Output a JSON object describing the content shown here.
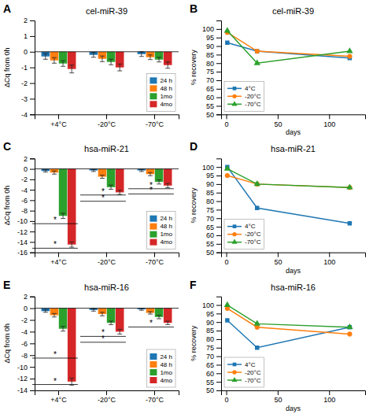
{
  "chart_data": [
    {
      "type": "bar",
      "panel_label": "A",
      "title": "cel-miR-39",
      "y_label": "ΔCq from 0h",
      "categories": [
        "+4°C",
        "-20°C",
        "-70°C"
      ],
      "series": [
        {
          "name": "24 h",
          "values": [
            -0.3,
            -0.2,
            -0.15
          ],
          "errors": [
            0.18,
            0.15,
            0.15
          ]
        },
        {
          "name": "48 h",
          "values": [
            -0.55,
            -0.45,
            -0.35
          ],
          "errors": [
            0.18,
            0.18,
            0.15
          ]
        },
        {
          "name": "1mo",
          "values": [
            -0.75,
            -0.65,
            -0.5
          ],
          "errors": [
            0.18,
            0.18,
            0.15
          ]
        },
        {
          "name": "4mo",
          "values": [
            -1.1,
            -1.0,
            -0.85
          ],
          "errors": [
            0.25,
            0.22,
            0.2
          ]
        }
      ],
      "ylim": [
        -4,
        2
      ],
      "yticks": [
        -4,
        -3,
        -2,
        -1,
        0,
        1,
        2
      ],
      "grid": false,
      "legend": "lower right"
    },
    {
      "type": "line",
      "panel_label": "B",
      "title": "cel-miR-39",
      "x_label": "days",
      "y_label": "% recovery",
      "x": [
        1,
        30,
        120
      ],
      "series": [
        {
          "name": "4°C",
          "values": [
            92,
            87,
            83
          ],
          "marker": "square",
          "line_style": "solid"
        },
        {
          "name": "-20°C",
          "values": [
            98,
            87,
            84
          ],
          "marker": "circle",
          "line_style": "solid"
        },
        {
          "name": "-70°C",
          "values": [
            99,
            80,
            87
          ],
          "marker": "triangle",
          "line_style": "solid"
        }
      ],
      "xlim": [
        -5,
        135
      ],
      "xticks": [
        0,
        50,
        100
      ],
      "ylim": [
        50,
        105
      ],
      "yticks": [
        50,
        55,
        60,
        65,
        70,
        75,
        80,
        85,
        90,
        95,
        100
      ],
      "grid": false,
      "legend": "lower left"
    },
    {
      "type": "bar",
      "panel_label": "C",
      "title": "hsa-miR-21",
      "y_label": "ΔCq from 0h",
      "categories": [
        "+4°C",
        "-20°C",
        "-70°C"
      ],
      "series": [
        {
          "name": "24 h",
          "values": [
            -0.4,
            -0.3,
            -0.3
          ],
          "errors": [
            0.2,
            0.2,
            0.2
          ]
        },
        {
          "name": "48 h",
          "values": [
            -0.7,
            -1.5,
            -1.0
          ],
          "errors": [
            0.3,
            0.3,
            0.3
          ]
        },
        {
          "name": "1mo",
          "values": [
            -9.0,
            -3.5,
            -2.5
          ],
          "errors": [
            0.5,
            0.4,
            0.4
          ]
        },
        {
          "name": "4mo",
          "values": [
            -14.5,
            -4.5,
            -3.2
          ],
          "errors": [
            0.5,
            0.4,
            0.4
          ]
        }
      ],
      "ylim": [
        -16,
        2
      ],
      "yticks": [
        -16,
        -14,
        -12,
        -10,
        -8,
        -6,
        -4,
        -2,
        0,
        2
      ],
      "annotations": [
        {
          "text": "*",
          "x1": -0.55,
          "x2": 0.4,
          "y": -10.5
        },
        {
          "text": "*",
          "x1": -0.55,
          "x2": 0.4,
          "y": -15.2
        },
        {
          "text": "*",
          "x1": 0.45,
          "x2": 1.4,
          "y": -5.0
        },
        {
          "text": "*",
          "x1": 0.45,
          "x2": 1.4,
          "y": -6.2
        },
        {
          "text": "*",
          "x1": 1.45,
          "x2": 2.4,
          "y": -3.8
        },
        {
          "text": "*",
          "x1": 1.45,
          "x2": 2.4,
          "y": -4.8
        }
      ],
      "grid": false,
      "legend": "lower right"
    },
    {
      "type": "line",
      "panel_label": "D",
      "title": "hsa-miR-21",
      "x_label": "days",
      "y_label": "% recovery",
      "x": [
        1,
        30,
        120
      ],
      "series": [
        {
          "name": "4°C",
          "values": [
            100,
            76,
            67
          ],
          "marker": "square",
          "line_style": "solid"
        },
        {
          "name": "-20°C",
          "values": [
            95,
            90,
            88
          ],
          "marker": "circle",
          "line_style": "solid"
        },
        {
          "name": "-70°C",
          "values": [
            99,
            90,
            88
          ],
          "marker": "triangle",
          "line_style": "solid"
        }
      ],
      "xlim": [
        -5,
        135
      ],
      "xticks": [
        0,
        50,
        100
      ],
      "ylim": [
        50,
        105
      ],
      "yticks": [
        50,
        55,
        60,
        65,
        70,
        75,
        80,
        85,
        90,
        95,
        100
      ],
      "grid": false,
      "legend": "lower left"
    },
    {
      "type": "bar",
      "panel_label": "E",
      "title": "hsa-miR-16",
      "y_label": "ΔCq from 0h",
      "categories": [
        "+4°C",
        "-20°C",
        "-70°C"
      ],
      "series": [
        {
          "name": "24 h",
          "values": [
            -0.5,
            -0.3,
            -0.2
          ],
          "errors": [
            0.2,
            0.2,
            0.15
          ]
        },
        {
          "name": "48 h",
          "values": [
            -1.2,
            -1.0,
            -0.8
          ],
          "errors": [
            0.3,
            0.3,
            0.2
          ]
        },
        {
          "name": "1mo",
          "values": [
            -3.5,
            -2.5,
            -1.5
          ],
          "errors": [
            0.4,
            0.3,
            0.3
          ]
        },
        {
          "name": "4mo",
          "values": [
            -12.5,
            -4.0,
            -2.5
          ],
          "errors": [
            0.6,
            0.4,
            0.3
          ]
        }
      ],
      "ylim": [
        -14,
        2
      ],
      "yticks": [
        -14,
        -12,
        -10,
        -8,
        -6,
        -4,
        -2,
        0,
        2
      ],
      "annotations": [
        {
          "text": "*",
          "x1": -0.55,
          "x2": 0.4,
          "y": -8.5
        },
        {
          "text": "*",
          "x1": -0.55,
          "x2": 0.4,
          "y": -13.0
        },
        {
          "text": "*",
          "x1": 0.45,
          "x2": 1.4,
          "y": -4.8
        },
        {
          "text": "*",
          "x1": 0.45,
          "x2": 1.4,
          "y": -5.8
        },
        {
          "text": "*",
          "x1": 1.45,
          "x2": 2.4,
          "y": -3.2
        }
      ],
      "grid": false,
      "legend": "lower right"
    },
    {
      "type": "line",
      "panel_label": "F",
      "title": "hsa-miR-16",
      "x_label": "days",
      "y_label": "% recovery",
      "x": [
        1,
        30,
        120
      ],
      "series": [
        {
          "name": "4°C",
          "values": [
            91,
            75,
            87
          ],
          "marker": "square",
          "line_style": "solid"
        },
        {
          "name": "-20°C",
          "values": [
            98,
            87,
            83
          ],
          "marker": "circle",
          "line_style": "solid"
        },
        {
          "name": "-70°C",
          "values": [
            100,
            89,
            87
          ],
          "marker": "triangle",
          "line_style": "solid"
        }
      ],
      "xlim": [
        -5,
        135
      ],
      "xticks": [
        0,
        50,
        100
      ],
      "ylim": [
        50,
        105
      ],
      "yticks": [
        50,
        55,
        60,
        65,
        70,
        75,
        80,
        85,
        90,
        95,
        100
      ],
      "grid": false,
      "legend": "lower left"
    }
  ]
}
